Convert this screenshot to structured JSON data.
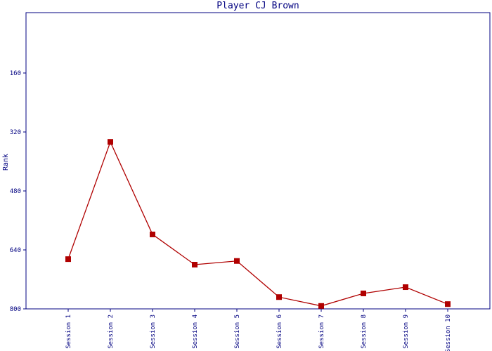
{
  "chart_data": {
    "type": "line",
    "title": "Player CJ Brown",
    "y_label": "Rank",
    "categories": [
      "Session 1",
      "Session 2",
      "Session 3",
      "Session 4",
      "Session 5",
      "Session 6",
      "Session 7",
      "Session 8",
      "Session 9",
      "Session 10"
    ],
    "series": [
      {
        "name": "Rank",
        "color": "#b00000",
        "values": [
          665,
          347,
          598,
          680,
          670,
          768,
          792,
          758,
          741,
          787
        ]
      }
    ],
    "ylim": [
      0,
      800
    ],
    "y_inverted": true,
    "yticks": [
      160,
      320,
      480,
      640,
      800
    ],
    "grid": false
  }
}
